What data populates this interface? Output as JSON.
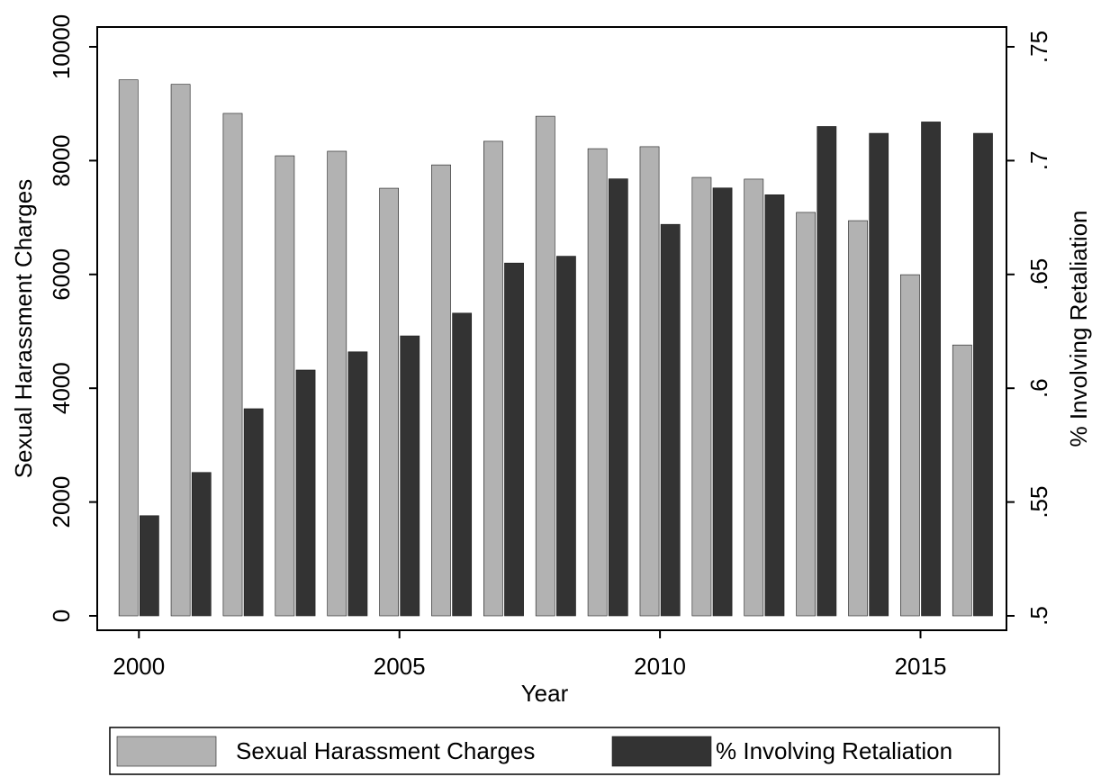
{
  "chart_data": {
    "type": "bar",
    "x_label": "Year",
    "y_label": "Sexual Harassment Charges",
    "y2_label": "% Involving Retaliation",
    "x": [
      2000,
      2001,
      2002,
      2003,
      2004,
      2005,
      2006,
      2007,
      2008,
      2009,
      2010,
      2011,
      2012,
      2013,
      2014,
      2015,
      2016
    ],
    "series": [
      {
        "name": "Sexual Harassment Charges",
        "color": "#b2b2b2",
        "axis": "y",
        "values": [
          9420,
          9340,
          8830,
          8085,
          8165,
          7515,
          7925,
          8340,
          8780,
          8210,
          8245,
          7705,
          7675,
          7090,
          6945,
          5995,
          4760
        ]
      },
      {
        "name": "% Involving Retaliation",
        "color": "#333333",
        "axis": "y2",
        "values": [
          0.544,
          0.563,
          0.591,
          0.608,
          0.616,
          0.623,
          0.633,
          0.655,
          0.658,
          0.692,
          0.672,
          0.688,
          0.685,
          0.715,
          0.712,
          0.717,
          0.712
        ]
      }
    ],
    "xlim": [
      1999.2,
      2016.65
    ],
    "xticks": [
      2000,
      2005,
      2010,
      2015
    ],
    "ylim": [
      0,
      10000
    ],
    "yticks": [
      0,
      2000,
      4000,
      6000,
      8000,
      10000
    ],
    "y2lim": [
      0.5,
      0.75
    ],
    "y2ticks": [
      {
        "value": 0.5,
        "label": ".5"
      },
      {
        "value": 0.55,
        "label": ".55"
      },
      {
        "value": 0.6,
        "label": ".6"
      },
      {
        "value": 0.65,
        "label": ".65"
      },
      {
        "value": 0.7,
        "label": ".7"
      },
      {
        "value": 0.75,
        "label": ".75"
      }
    ],
    "grid": false,
    "legend": "bottom"
  }
}
